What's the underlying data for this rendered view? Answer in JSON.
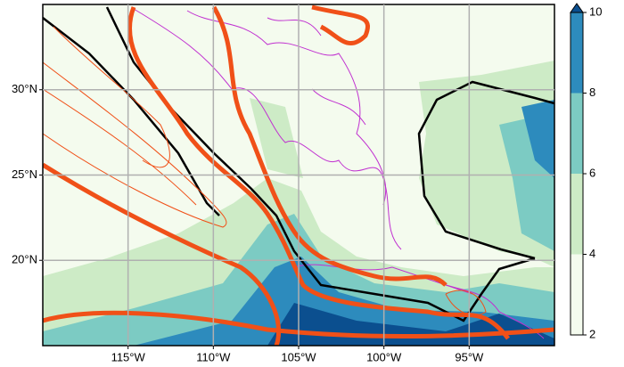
{
  "map": {
    "xlim": [
      -120,
      -90
    ],
    "ylim": [
      15,
      35
    ],
    "lon_ticks": [
      {
        "value": -115,
        "label": "115°W"
      },
      {
        "value": -110,
        "label": "110°W"
      },
      {
        "value": -105,
        "label": "105°W"
      },
      {
        "value": -100,
        "label": "100°W"
      },
      {
        "value": -95,
        "label": "95°W"
      }
    ],
    "lat_ticks": [
      {
        "value": 20,
        "label": "20°N"
      },
      {
        "value": 25,
        "label": "25°N"
      },
      {
        "value": 30,
        "label": "30°N"
      }
    ],
    "grid": true,
    "grid_color": "#b0b0b0",
    "colorbar": {
      "lim": [
        2,
        10
      ],
      "ticks": [
        2,
        4,
        6,
        8,
        10
      ],
      "colors": [
        "#f4fbee",
        "#cdebc6",
        "#7ccbc3",
        "#2d8bbd",
        "#0b4f8f"
      ],
      "extend": "max"
    }
  }
}
